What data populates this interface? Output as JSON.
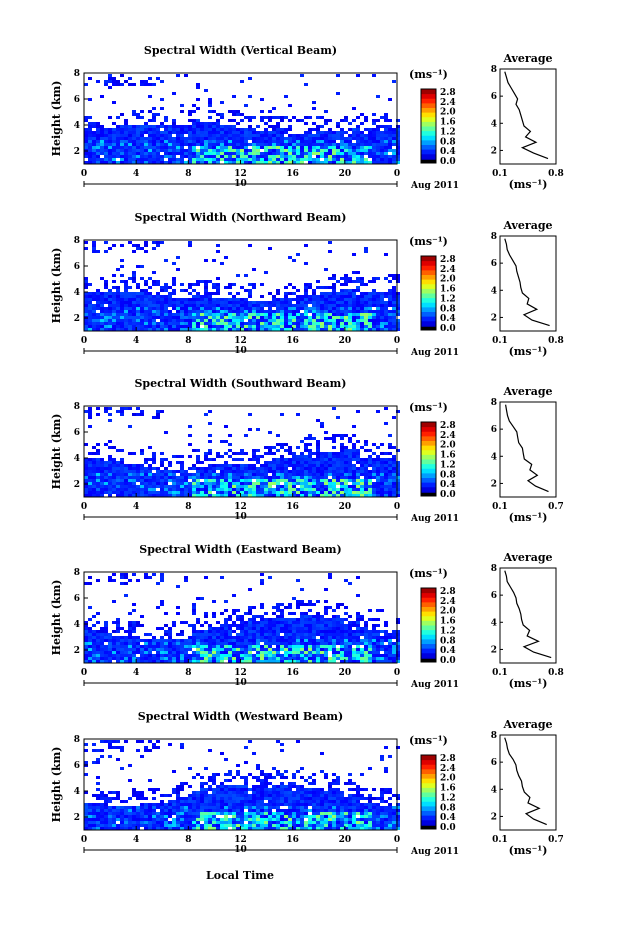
{
  "figure": {
    "x_axis_title": "Local Time"
  },
  "chart_data": [
    {
      "type": "heatmap",
      "title": "Spectral Width (Vertical Beam)",
      "ylabel": "Height (km)",
      "x_ticks": [
        "0",
        "4",
        "8",
        "12",
        "16",
        "20",
        "0"
      ],
      "y_ticks": [
        "2",
        "4",
        "6",
        "8"
      ],
      "xlim": [
        0,
        24
      ],
      "ylim": [
        1,
        8
      ],
      "date_day": "10",
      "date_label": "Aug 2011",
      "colorbar": {
        "unit": "(ms⁻¹)",
        "ticks": [
          "0.0",
          "0.4",
          "0.8",
          "1.2",
          "1.6",
          "2.0",
          "2.4",
          "2.8"
        ],
        "range": [
          0,
          3.0
        ]
      },
      "average_profile": {
        "title": "Average",
        "xlabel": "(ms⁻¹)",
        "x_ticks": [
          "0.1",
          "0.8"
        ],
        "xlim": [
          0.1,
          0.8
        ],
        "y_ticks": [
          "2",
          "4",
          "6",
          "8"
        ],
        "ylim": [
          1,
          8
        ],
        "heights": [
          1.4,
          1.8,
          2.2,
          2.6,
          3.0,
          3.4,
          3.8,
          4.2,
          4.6,
          5.0,
          5.4,
          5.8,
          6.2,
          6.6,
          7.0,
          7.4,
          7.8
        ],
        "values": [
          0.7,
          0.52,
          0.38,
          0.55,
          0.42,
          0.48,
          0.4,
          0.38,
          0.36,
          0.34,
          0.3,
          0.32,
          0.28,
          0.24,
          0.2,
          0.18,
          0.16
        ]
      }
    },
    {
      "type": "heatmap",
      "title": "Spectral Width (Northward Beam)",
      "ylabel": "Height (km)",
      "x_ticks": [
        "0",
        "4",
        "8",
        "12",
        "16",
        "20",
        "0"
      ],
      "y_ticks": [
        "2",
        "4",
        "6",
        "8"
      ],
      "xlim": [
        0,
        24
      ],
      "ylim": [
        1,
        8
      ],
      "date_day": "10",
      "date_label": "Aug 2011",
      "colorbar": {
        "unit": "(ms⁻¹)",
        "ticks": [
          "0.0",
          "0.4",
          "0.8",
          "1.2",
          "1.6",
          "2.0",
          "2.4",
          "2.8"
        ],
        "range": [
          0,
          3.0
        ]
      },
      "average_profile": {
        "title": "Average",
        "xlabel": "(ms⁻¹)",
        "x_ticks": [
          "0.1",
          "0.8"
        ],
        "xlim": [
          0.1,
          0.8
        ],
        "y_ticks": [
          "2",
          "4",
          "6",
          "8"
        ],
        "ylim": [
          1,
          8
        ],
        "heights": [
          1.4,
          1.8,
          2.2,
          2.6,
          3.0,
          3.4,
          3.8,
          4.2,
          4.6,
          5.0,
          5.4,
          5.8,
          6.2,
          6.6,
          7.0,
          7.4,
          7.8
        ],
        "values": [
          0.72,
          0.5,
          0.4,
          0.56,
          0.44,
          0.46,
          0.38,
          0.36,
          0.35,
          0.33,
          0.31,
          0.3,
          0.26,
          0.22,
          0.19,
          0.18,
          0.16
        ]
      }
    },
    {
      "type": "heatmap",
      "title": "Spectral Width (Southward Beam)",
      "ylabel": "Height (km)",
      "x_ticks": [
        "0",
        "4",
        "8",
        "12",
        "16",
        "20",
        "0"
      ],
      "y_ticks": [
        "2",
        "4",
        "6",
        "8"
      ],
      "xlim": [
        0,
        24
      ],
      "ylim": [
        1,
        8
      ],
      "date_day": "10",
      "date_label": "Aug 2011",
      "colorbar": {
        "unit": "(ms⁻¹)",
        "ticks": [
          "0.0",
          "0.4",
          "0.8",
          "1.2",
          "1.6",
          "2.0",
          "2.4",
          "2.8"
        ],
        "range": [
          0,
          3.0
        ]
      },
      "average_profile": {
        "title": "Average",
        "xlabel": "(ms⁻¹)",
        "x_ticks": [
          "0.1",
          "0.7"
        ],
        "xlim": [
          0.1,
          0.7
        ],
        "y_ticks": [
          "2",
          "4",
          "6",
          "8"
        ],
        "ylim": [
          1,
          8
        ],
        "heights": [
          1.4,
          1.8,
          2.2,
          2.6,
          3.0,
          3.4,
          3.8,
          4.2,
          4.6,
          5.0,
          5.4,
          5.8,
          6.2,
          6.6,
          7.0,
          7.4,
          7.8
        ],
        "values": [
          0.62,
          0.48,
          0.4,
          0.5,
          0.42,
          0.44,
          0.36,
          0.35,
          0.34,
          0.3,
          0.29,
          0.28,
          0.24,
          0.2,
          0.18,
          0.17,
          0.16
        ]
      }
    },
    {
      "type": "heatmap",
      "title": "Spectral Width (Eastward Beam)",
      "ylabel": "Height (km)",
      "x_ticks": [
        "0",
        "4",
        "8",
        "12",
        "16",
        "20",
        "0"
      ],
      "y_ticks": [
        "2",
        "4",
        "6",
        "8"
      ],
      "xlim": [
        0,
        24
      ],
      "ylim": [
        1,
        8
      ],
      "date_day": "10",
      "date_label": "Aug 2011",
      "colorbar": {
        "unit": "(ms⁻¹)",
        "ticks": [
          "0.0",
          "0.4",
          "0.8",
          "1.2",
          "1.6",
          "2.0",
          "2.4",
          "2.8"
        ],
        "range": [
          0,
          3.0
        ]
      },
      "average_profile": {
        "title": "Average",
        "xlabel": "(ms⁻¹)",
        "x_ticks": [
          "0.1",
          "0.8"
        ],
        "xlim": [
          0.1,
          0.8
        ],
        "y_ticks": [
          "2",
          "4",
          "6",
          "8"
        ],
        "ylim": [
          1,
          8
        ],
        "heights": [
          1.4,
          1.8,
          2.2,
          2.6,
          3.0,
          3.4,
          3.8,
          4.2,
          4.6,
          5.0,
          5.4,
          5.8,
          6.2,
          6.6,
          7.0,
          7.4,
          7.8
        ],
        "values": [
          0.74,
          0.52,
          0.4,
          0.58,
          0.44,
          0.47,
          0.39,
          0.37,
          0.36,
          0.34,
          0.31,
          0.3,
          0.27,
          0.23,
          0.19,
          0.18,
          0.16
        ]
      }
    },
    {
      "type": "heatmap",
      "title": "Spectral Width (Westward Beam)",
      "ylabel": "Height (km)",
      "x_ticks": [
        "0",
        "4",
        "8",
        "12",
        "16",
        "20",
        "0"
      ],
      "y_ticks": [
        "2",
        "4",
        "6",
        "8"
      ],
      "xlim": [
        0,
        24
      ],
      "ylim": [
        1,
        8
      ],
      "date_day": "10",
      "date_label": "Aug 2011",
      "colorbar": {
        "unit": "(ms⁻¹)",
        "ticks": [
          "0.0",
          "0.4",
          "0.8",
          "1.2",
          "1.6",
          "2.0",
          "2.4",
          "2.8"
        ],
        "range": [
          0,
          3.0
        ]
      },
      "average_profile": {
        "title": "Average",
        "xlabel": "(ms⁻¹)",
        "x_ticks": [
          "0.1",
          "0.7"
        ],
        "xlim": [
          0.1,
          0.7
        ],
        "y_ticks": [
          "2",
          "4",
          "6",
          "8"
        ],
        "ylim": [
          1,
          8
        ],
        "heights": [
          1.4,
          1.8,
          2.2,
          2.6,
          3.0,
          3.4,
          3.8,
          4.2,
          4.6,
          5.0,
          5.4,
          5.8,
          6.2,
          6.6,
          7.0,
          7.4,
          7.8
        ],
        "values": [
          0.6,
          0.46,
          0.38,
          0.52,
          0.4,
          0.42,
          0.36,
          0.34,
          0.33,
          0.3,
          0.28,
          0.27,
          0.24,
          0.2,
          0.18,
          0.17,
          0.15
        ]
      }
    }
  ]
}
